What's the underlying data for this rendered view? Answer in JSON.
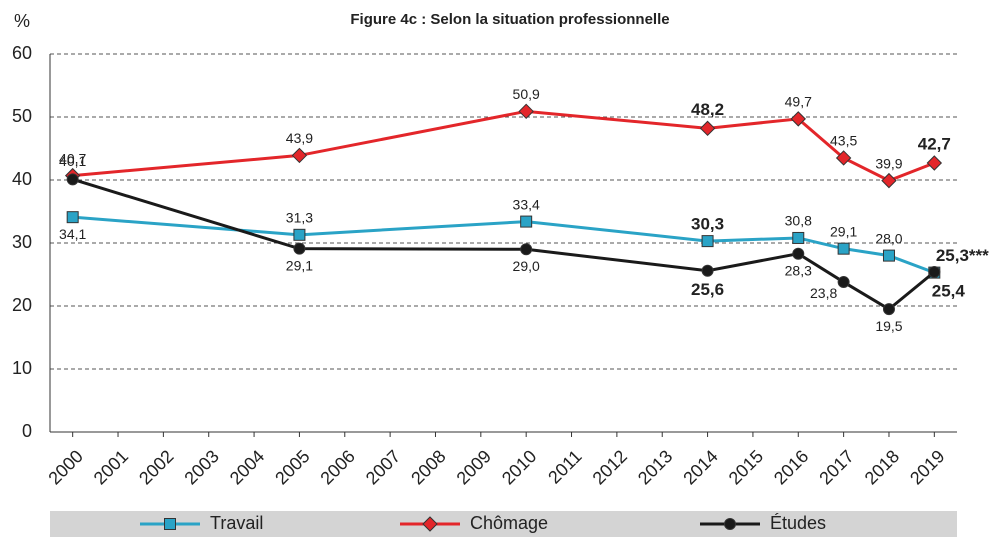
{
  "chart_data": {
    "type": "line",
    "title": "Figure 4c : Selon la situation professionnelle",
    "y_label": "%",
    "x": [
      2000,
      2005,
      2010,
      2014,
      2016,
      2017,
      2018,
      2019
    ],
    "xlim": [
      1999.5,
      2019.5
    ],
    "xticks": [
      2000,
      2001,
      2002,
      2003,
      2004,
      2005,
      2006,
      2007,
      2008,
      2009,
      2010,
      2011,
      2012,
      2013,
      2014,
      2015,
      2016,
      2017,
      2018,
      2019
    ],
    "ylim": [
      0,
      60
    ],
    "yticks": [
      0,
      10,
      20,
      30,
      40,
      50,
      60
    ],
    "grid": true,
    "legend": "bottom",
    "series": [
      {
        "name": "Travail",
        "color": "#2aa3c6",
        "marker": "square",
        "values": [
          34.1,
          31.3,
          33.4,
          30.3,
          30.8,
          29.1,
          28.0,
          25.3
        ],
        "value_labels": [
          "34,1",
          "31,3",
          "33,4",
          "30,3",
          "30,8",
          "29,1",
          "28,0",
          "25,3***"
        ]
      },
      {
        "name": "Chômage",
        "color": "#e3262a",
        "marker": "diamond",
        "values": [
          40.7,
          43.9,
          50.9,
          48.2,
          49.7,
          43.5,
          39.9,
          42.7
        ],
        "value_labels": [
          "40,7",
          "43,9",
          "50,9",
          "48,2",
          "49,7",
          "43,5",
          "39,9",
          "42,7"
        ]
      },
      {
        "name": "Études",
        "color": "#1a1a1a",
        "marker": "circle",
        "values": [
          40.1,
          29.1,
          29.0,
          25.6,
          28.3,
          23.8,
          19.5,
          25.4
        ],
        "value_labels": [
          "40,1",
          "29,1",
          "29,0",
          "25,6",
          "28,3",
          "23,8",
          "19,5",
          "25,4"
        ]
      }
    ]
  }
}
